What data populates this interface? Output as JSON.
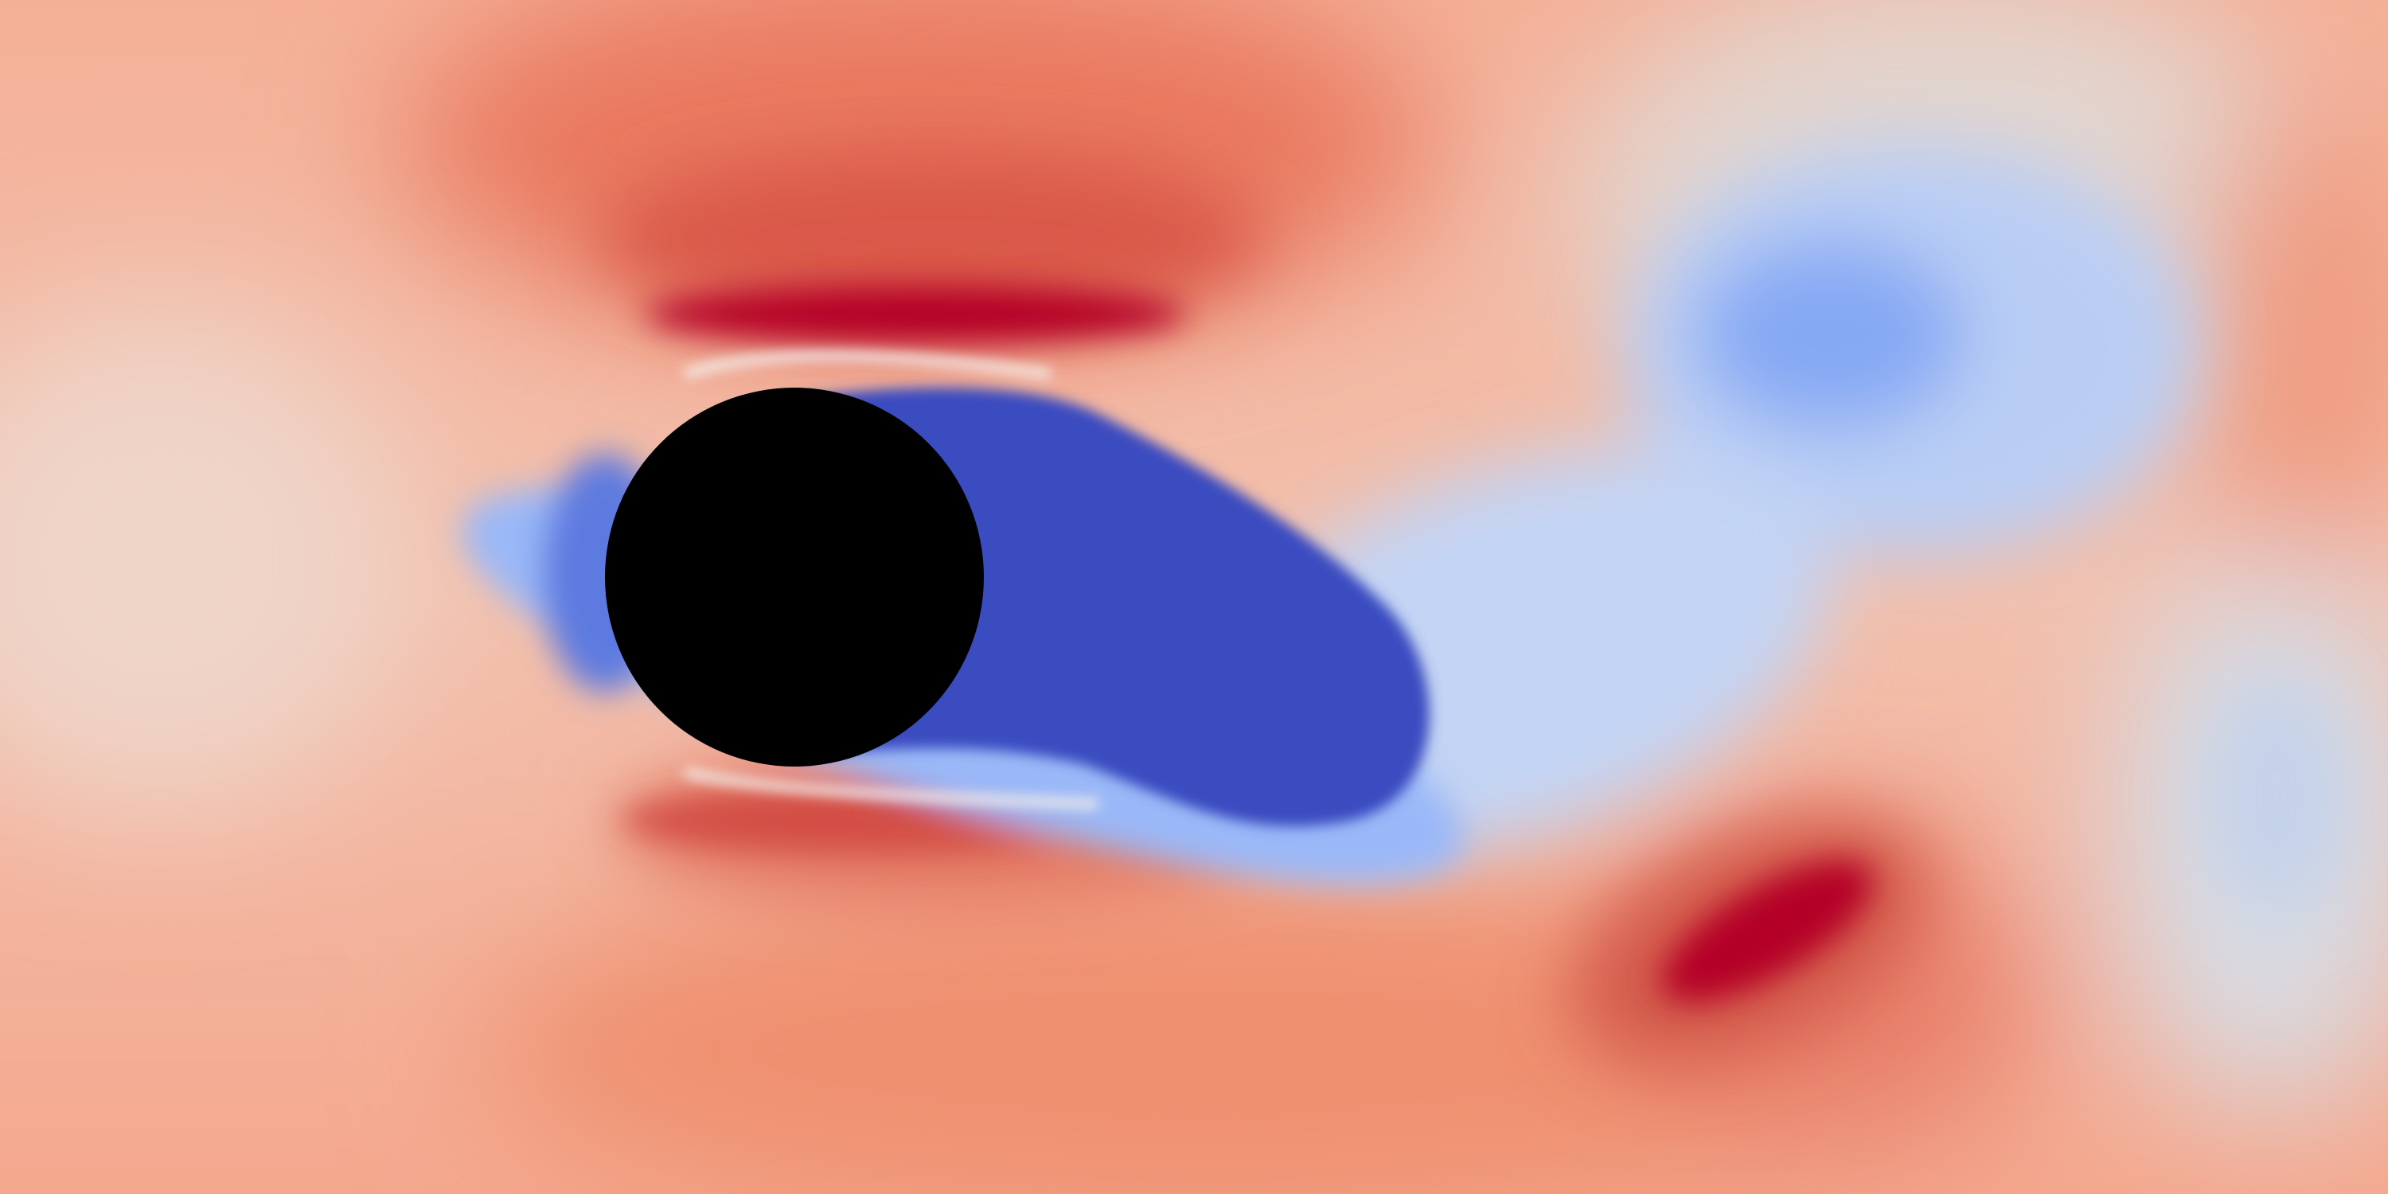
{
  "visualization": {
    "colormap": "coolwarm",
    "colors": {
      "background_warm": "#f4b49a",
      "ambient_light": "#f6c6b2",
      "neutral": "#dcdcdc",
      "warm_mid": "#ee8a6c",
      "warm_strong": "#dc5f4c",
      "warm_peak": "#b40426",
      "cool_light": "#b9d0f6",
      "cool_mid": "#89aef7",
      "cool_strong": "#3b4cc0",
      "obstacle": "#000000"
    },
    "obstacle": {
      "shape": "circle"
    }
  }
}
